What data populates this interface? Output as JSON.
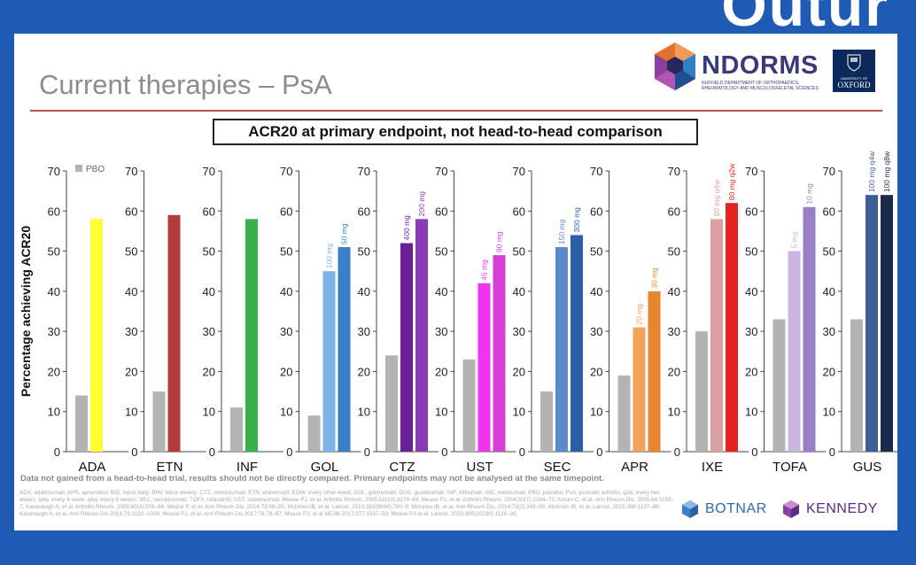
{
  "corner": {
    "text": "Outur"
  },
  "slide": {
    "title": "Current therapies – PsA",
    "chart_box_title": "ACR20 at primary endpoint, not head-to-head comparison",
    "warning": "Data not gained from a head-to-head trial, results should not be directly compared. Primary endpoints may not be analysed at the same timepoint.",
    "references": "ADA, adalimumab; APR, apremilast; BID, twice daily; BIW, twice weekly; CTZ, certolizumab; ETN, etanercept; EOW, every other week; GOL, golimumab; GUS, guselkumab; INF, infliximab; IXE, ixekizumab; PBO, placebo; PsA, psoriatic arthritis; q2w, every two weeks; q4w, every 4 week; q8w, every 8 weeks; SEC, secukinumab; TOFA, tofacitinib; UST, ustekinumab. Mease PJ, et al. Arthritis Rheum. 2005;52(10):3279–89; Mease PJ, et al. Arthritis Rheum. 2004;50(7):2264–72; Antoni C, et al. Ann Rheum Dis. 2005;64:1150–7; Kavanaugh A, et al. Arthritis Rheum. 2009;60(4):976–86; Mease P, et al. Ann Rheum Dis. 2014;73:48–55; McInnes IB, et al. Lancet. 2013;382(9894):780–9; McInnes IB, et al. Ann Rheum Dis. 2014;73(2):349–56; McInnes IB, et al. Lancet. 2015;386:1137–46; Kavanaugh A, et al. Ann Rheum Dis 2014;73:1020–1026; Mease PJ, et al. Ann Rheum Dis 2017;76:79–87; Mease PJ, et al NEJM 2017;377:1537–50; Mease PJ et al. Lancet. 2020;395(10230):1126–36."
  },
  "logos": {
    "ndorms": "NDORMS",
    "ndorms_sub": "NUFFIELD DEPARTMENT OF ORTHOPAEDICS, RHEUMATOLOGY AND MUSCULOSKELETAL SCIENCES",
    "oxford": "OXFORD",
    "oxford_sub": "UNIVERSITY OF",
    "botnar": "BOTNAR",
    "kennedy": "KENNEDY"
  },
  "colors": {
    "placebo": "#b3b3b3",
    "background": "#1f5bb5",
    "rule": "#c0504d"
  },
  "chart_data": {
    "type": "bar",
    "ylabel": "Percentage achieving ACR20",
    "ylim": [
      0,
      70
    ],
    "yticks": [
      0,
      10,
      20,
      30,
      40,
      50,
      60,
      70
    ],
    "legend": {
      "label": "PBO",
      "placement": "top-left"
    },
    "panels": [
      {
        "category": "ADA",
        "bars": [
          {
            "label": "",
            "value": 14,
            "color": "#b3b3b3"
          },
          {
            "label": "",
            "value": 58,
            "color": "#ffff33"
          }
        ]
      },
      {
        "category": "ETN",
        "bars": [
          {
            "label": "",
            "value": 15,
            "color": "#b3b3b3"
          },
          {
            "label": "",
            "value": 59,
            "color": "#b23b3b"
          }
        ]
      },
      {
        "category": "INF",
        "bars": [
          {
            "label": "",
            "value": 11,
            "color": "#b3b3b3"
          },
          {
            "label": "",
            "value": 58,
            "color": "#3ab04a"
          }
        ]
      },
      {
        "category": "GOL",
        "bars": [
          {
            "label": "",
            "value": 9,
            "color": "#b3b3b3"
          },
          {
            "label": "100 mg",
            "value": 45,
            "color": "#7fb3e6"
          },
          {
            "label": "50 mg",
            "value": 51,
            "color": "#3c7fc9"
          }
        ]
      },
      {
        "category": "CTZ",
        "bars": [
          {
            "label": "",
            "value": 24,
            "color": "#b3b3b3"
          },
          {
            "label": "400 mg",
            "value": 52,
            "color": "#6a1f96"
          },
          {
            "label": "200 mg",
            "value": 58,
            "color": "#8a3bb3"
          }
        ]
      },
      {
        "category": "UST",
        "bars": [
          {
            "label": "",
            "value": 23,
            "color": "#b3b3b3"
          },
          {
            "label": "45 mg",
            "value": 42,
            "color": "#f033f0"
          },
          {
            "label": "90 mg",
            "value": 49,
            "color": "#d43fd4"
          }
        ]
      },
      {
        "category": "SEC",
        "bars": [
          {
            "label": "",
            "value": 15,
            "color": "#b3b3b3"
          },
          {
            "label": "150 mg",
            "value": 51,
            "color": "#5a8acc"
          },
          {
            "label": "300 mg",
            "value": 54,
            "color": "#2d5fa6"
          }
        ]
      },
      {
        "category": "APR",
        "bars": [
          {
            "label": "",
            "value": 19,
            "color": "#b3b3b3"
          },
          {
            "label": "20 mg",
            "value": 31,
            "color": "#f2a25a"
          },
          {
            "label": "30 mg",
            "value": 40,
            "color": "#e6862e"
          }
        ]
      },
      {
        "category": "IXE",
        "bars": [
          {
            "label": "",
            "value": 30,
            "color": "#b3b3b3"
          },
          {
            "label": "80 mg q4w",
            "value": 58,
            "color": "#dba1a1"
          },
          {
            "label": "80 mg q2w",
            "value": 62,
            "color": "#e8231f"
          }
        ]
      },
      {
        "category": "TOFA",
        "bars": [
          {
            "label": "",
            "value": 33,
            "color": "#b3b3b3"
          },
          {
            "label": "5 mg",
            "value": 50,
            "color": "#c9b6e0"
          },
          {
            "label": "10 mg",
            "value": 61,
            "color": "#9a7fc4"
          }
        ]
      },
      {
        "category": "GUS",
        "bars": [
          {
            "label": "",
            "value": 33,
            "color": "#b3b3b3"
          },
          {
            "label": "100 mg q4w",
            "value": 64,
            "color": "#3d5f95"
          },
          {
            "label": "100 mg q8w",
            "value": 64,
            "color": "#1b2a4a"
          }
        ]
      }
    ]
  }
}
